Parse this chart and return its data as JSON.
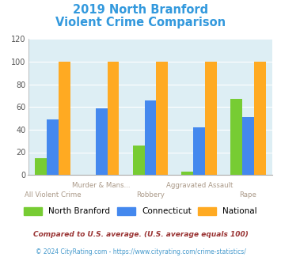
{
  "title_line1": "2019 North Branford",
  "title_line2": "Violent Crime Comparison",
  "title_color": "#3399dd",
  "categories": [
    "All Violent Crime",
    "Murder & Mans...",
    "Robbery",
    "Aggravated Assault",
    "Rape"
  ],
  "cat_row2": [
    "All Violent Crime",
    "",
    "Robbery",
    "",
    "Rape"
  ],
  "cat_row1": [
    "",
    "Murder & Mans...",
    "",
    "Aggravated Assault",
    ""
  ],
  "series": {
    "North Branford": [
      15,
      0,
      26,
      3,
      67
    ],
    "Connecticut": [
      49,
      59,
      66,
      42,
      51
    ],
    "National": [
      100,
      100,
      100,
      100,
      100
    ]
  },
  "colors": {
    "North Branford": "#77cc33",
    "Connecticut": "#4488ee",
    "National": "#ffaa22"
  },
  "ylim": [
    0,
    120
  ],
  "yticks": [
    0,
    20,
    40,
    60,
    80,
    100,
    120
  ],
  "plot_bg_color": "#ddeef4",
  "grid_color": "#ffffff",
  "footnote1": "Compared to U.S. average. (U.S. average equals 100)",
  "footnote2": "© 2024 CityRating.com - https://www.cityrating.com/crime-statistics/",
  "footnote1_color": "#993333",
  "footnote2_color": "#4499cc",
  "series_names": [
    "North Branford",
    "Connecticut",
    "National"
  ]
}
